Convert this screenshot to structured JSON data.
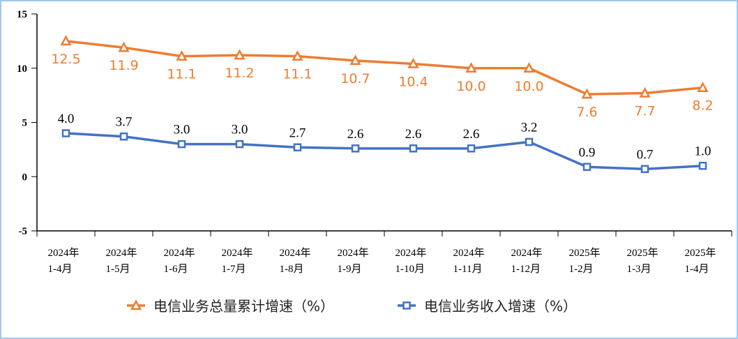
{
  "chart_data": {
    "type": "line",
    "categories": [
      [
        "2024年",
        "1-4月"
      ],
      [
        "2024年",
        "1-5月"
      ],
      [
        "2024年",
        "1-6月"
      ],
      [
        "2024年",
        "1-7月"
      ],
      [
        "2024年",
        "1-8月"
      ],
      [
        "2024年",
        "1-9月"
      ],
      [
        "2024年",
        "1-10月"
      ],
      [
        "2024年",
        "1-11月"
      ],
      [
        "2024年",
        "1-12月"
      ],
      [
        "2025年",
        "1-2月"
      ],
      [
        "2025年",
        "1-3月"
      ],
      [
        "2025年",
        "1-4月"
      ]
    ],
    "series": [
      {
        "name": "电信业务总量累计增速（%）",
        "color": "#ED7D31",
        "marker": "triangle",
        "values": [
          12.5,
          11.9,
          11.1,
          11.2,
          11.1,
          10.7,
          10.4,
          10.0,
          10.0,
          7.6,
          7.7,
          8.2
        ]
      },
      {
        "name": "电信业务收入增速（%）",
        "color": "#4472C4",
        "marker": "square",
        "values": [
          4.0,
          3.7,
          3.0,
          3.0,
          2.7,
          2.6,
          2.6,
          2.6,
          3.2,
          0.9,
          0.7,
          1.0
        ]
      }
    ],
    "yticks": [
      15,
      10,
      5,
      0,
      -5
    ],
    "ylim": [
      -5,
      15
    ],
    "grid": false,
    "legend": "bottom"
  }
}
